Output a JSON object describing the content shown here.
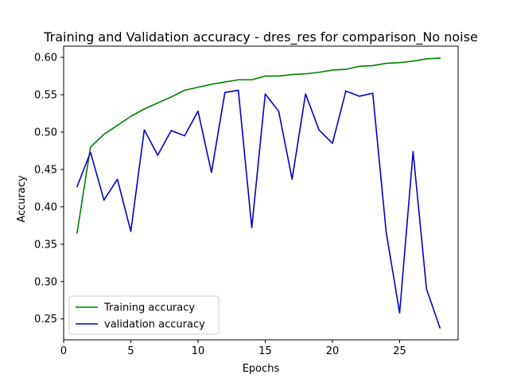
{
  "chart_data": {
    "type": "line",
    "title": "Training and Validation accuracy - dres_res for comparison_No noise",
    "xlabel": "Epochs",
    "ylabel": "Accuracy",
    "xlim": [
      0.0,
      29.35
    ],
    "ylim": [
      0.222,
      0.615
    ],
    "xticks": [
      0,
      5,
      10,
      15,
      20,
      25
    ],
    "yticks": [
      0.25,
      0.3,
      0.35,
      0.4,
      0.45,
      0.5,
      0.55,
      0.6
    ],
    "ytick_labels": [
      "0.25",
      "0.30",
      "0.35",
      "0.40",
      "0.45",
      "0.50",
      "0.55",
      "0.60"
    ],
    "legend_position": "lower-left",
    "grid": false,
    "x": [
      1,
      2,
      3,
      4,
      5,
      6,
      7,
      8,
      9,
      10,
      11,
      12,
      13,
      14,
      15,
      16,
      17,
      18,
      19,
      20,
      21,
      22,
      23,
      24,
      25,
      26,
      27,
      28
    ],
    "series": [
      {
        "name": "Training accuracy",
        "color": "#008000",
        "values": [
          0.365,
          0.48,
          0.497,
          0.509,
          0.521,
          0.531,
          0.539,
          0.547,
          0.556,
          0.56,
          0.564,
          0.567,
          0.57,
          0.57,
          0.575,
          0.575,
          0.577,
          0.578,
          0.58,
          0.583,
          0.584,
          0.588,
          0.589,
          0.592,
          0.593,
          0.595,
          0.598,
          0.599
        ]
      },
      {
        "name": "validation accuracy",
        "color": "#0000cc",
        "values": [
          0.427,
          0.473,
          0.409,
          0.437,
          0.367,
          0.503,
          0.469,
          0.502,
          0.495,
          0.528,
          0.446,
          0.553,
          0.556,
          0.372,
          0.551,
          0.528,
          0.437,
          0.551,
          0.503,
          0.485,
          0.555,
          0.548,
          0.552,
          0.366,
          0.258,
          0.474,
          0.29,
          0.238
        ]
      }
    ]
  }
}
